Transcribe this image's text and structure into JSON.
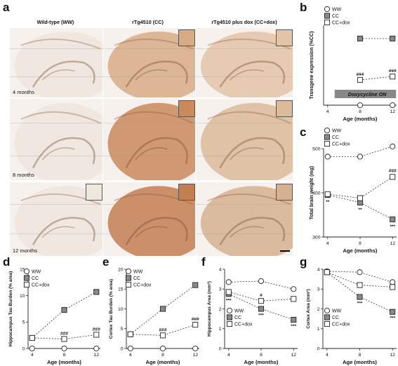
{
  "figure": {
    "panel_letters": {
      "a": "a",
      "b": "b",
      "c": "c",
      "d": "d",
      "e": "e",
      "f": "f",
      "g": "g"
    },
    "columns": [
      "Wild-type (WW)",
      "rTg4510 (CC)",
      "rTg4510 plus dox (CC+dox)"
    ],
    "row_ages": [
      "4 months",
      "8 months",
      "12 months"
    ],
    "micrograph_tones": {
      "ww": "#efe6de",
      "cc_4": "#d7ab86",
      "cc_8": "#c98a5c",
      "cc_12": "#c37e52",
      "dox_4": "#e3c4a8",
      "dox_8": "#dcbb9b",
      "dox_12": "#d6b190"
    },
    "doxycycline_label": "Doxycycline ON"
  },
  "chart_data": [
    {
      "id": "b",
      "type": "line",
      "ylabel": "Transgene expression (%CC)",
      "xlabel": "Age (months)",
      "x": [
        4,
        8,
        12
      ],
      "ylim": [
        0,
        120
      ],
      "yticks": [],
      "legend": [
        "WW",
        "CC",
        "CC+dox"
      ],
      "series": [
        {
          "name": "WW",
          "x": [
            8,
            12
          ],
          "values": [
            0,
            0
          ],
          "marker": "circle-open"
        },
        {
          "name": "CC",
          "x": [
            8,
            12
          ],
          "values": [
            100,
            100
          ],
          "marker": "square-gray"
        },
        {
          "name": "CC+dox",
          "x": [
            8,
            12
          ],
          "values": [
            38,
            43
          ],
          "marker": "square-open"
        }
      ],
      "annotations": [
        {
          "series": "CC+dox",
          "x": 8,
          "text": "###"
        },
        {
          "series": "CC+dox",
          "x": 12,
          "text": "###"
        }
      ]
    },
    {
      "id": "c",
      "type": "line",
      "ylabel": "Total brain weight (mg)",
      "xlabel": "Age (months)",
      "x": [
        4,
        8,
        12
      ],
      "ylim": [
        300,
        500
      ],
      "yticks": [
        300,
        400,
        500
      ],
      "legend": [
        "WW",
        "CC",
        "CC+dox"
      ],
      "series": [
        {
          "name": "WW",
          "x": [
            4,
            8,
            12
          ],
          "values": [
            482,
            482,
            505
          ],
          "marker": "circle-open"
        },
        {
          "name": "CC",
          "x": [
            4,
            8,
            12
          ],
          "values": [
            395,
            378,
            340
          ],
          "marker": "square-gray"
        },
        {
          "name": "CC+dox",
          "x": [
            4,
            8,
            12
          ],
          "values": [
            397,
            388,
            436
          ],
          "marker": "square-open"
        }
      ],
      "annotations": [
        {
          "x": 4,
          "text": "**",
          "pos": "below"
        },
        {
          "x": 8,
          "text": "**",
          "pos": "below"
        },
        {
          "x": 12,
          "text": "***",
          "pos": "below"
        },
        {
          "x": 12,
          "text": "###",
          "pos": "above"
        }
      ]
    },
    {
      "id": "d",
      "type": "line",
      "ylabel": "Hippocampus Tau Burden (% area)",
      "xlabel": "Age (months)",
      "x": [
        4,
        8,
        12
      ],
      "ylim": [
        0,
        15
      ],
      "yticks": [
        0,
        5,
        10,
        15
      ],
      "legend": [
        "WW",
        "CC",
        "CC+dox"
      ],
      "series": [
        {
          "name": "WW",
          "x": [
            4,
            8,
            12
          ],
          "values": [
            0,
            0,
            0
          ],
          "marker": "circle-open"
        },
        {
          "name": "CC",
          "x": [
            4,
            8,
            12
          ],
          "values": [
            2.0,
            7.3,
            10.7
          ],
          "marker": "square-gray"
        },
        {
          "name": "CC+dox",
          "x": [
            4,
            8,
            12
          ],
          "values": [
            2.0,
            1.8,
            2.6
          ],
          "marker": "square-open"
        }
      ],
      "annotations": [
        {
          "x": 8,
          "text": "###"
        },
        {
          "x": 12,
          "text": "###"
        }
      ]
    },
    {
      "id": "e",
      "type": "line",
      "ylabel": "Cortex Tau Burden (% area)",
      "xlabel": "Age (months)",
      "x": [
        4,
        8,
        12
      ],
      "ylim": [
        0,
        20
      ],
      "yticks": [
        0,
        5,
        10,
        15,
        20
      ],
      "legend": [
        "WW",
        "CC",
        "CC+dox"
      ],
      "series": [
        {
          "name": "WW",
          "x": [
            4,
            8,
            12
          ],
          "values": [
            0,
            0,
            0
          ],
          "marker": "circle-open"
        },
        {
          "name": "CC",
          "x": [
            4,
            8,
            12
          ],
          "values": [
            3.6,
            10.0,
            16.0
          ],
          "marker": "square-gray"
        },
        {
          "name": "CC+dox",
          "x": [
            4,
            8,
            12
          ],
          "values": [
            3.6,
            3.3,
            6.0
          ],
          "marker": "square-open"
        }
      ],
      "annotations": [
        {
          "x": 8,
          "text": "###"
        },
        {
          "x": 12,
          "text": "###"
        }
      ]
    },
    {
      "id": "f",
      "type": "line",
      "ylabel": "Hippocampus Area (mm²)",
      "xlabel": "Age (months)",
      "x": [
        4,
        8,
        12
      ],
      "ylim": [
        0,
        4
      ],
      "yticks": [
        0,
        1,
        2,
        3,
        4
      ],
      "legend": [
        "WW",
        "CC",
        "CC+dox"
      ],
      "series": [
        {
          "name": "WW",
          "x": [
            4,
            8,
            12
          ],
          "values": [
            3.35,
            3.4,
            3.0
          ],
          "marker": "circle-open"
        },
        {
          "name": "CC",
          "x": [
            4,
            8,
            12
          ],
          "values": [
            2.75,
            2.0,
            1.45
          ],
          "marker": "square-gray"
        },
        {
          "name": "CC+dox",
          "x": [
            4,
            8,
            12
          ],
          "values": [
            2.85,
            2.4,
            2.5
          ],
          "marker": "square-open"
        }
      ],
      "annotations": [
        {
          "x": 4,
          "text": "***"
        },
        {
          "x": 8,
          "text": "#"
        },
        {
          "x": 8,
          "text": "***"
        },
        {
          "x": 12,
          "text": "***"
        }
      ]
    },
    {
      "id": "g",
      "type": "line",
      "ylabel": "Cortex Area (mm²)",
      "xlabel": "Age (months)",
      "x": [
        4,
        8,
        12
      ],
      "ylim": [
        0,
        4
      ],
      "yticks": [
        0,
        1,
        2,
        3,
        4
      ],
      "legend": [
        "WW",
        "CC",
        "CC+dox"
      ],
      "series": [
        {
          "name": "WW",
          "x": [
            4,
            8,
            12
          ],
          "values": [
            3.9,
            3.85,
            3.35
          ],
          "marker": "circle-open"
        },
        {
          "name": "CC",
          "x": [
            4,
            8,
            12
          ],
          "values": [
            3.85,
            2.6,
            1.85
          ],
          "marker": "square-gray"
        },
        {
          "name": "CC+dox",
          "x": [
            4,
            8,
            12
          ],
          "values": [
            3.85,
            3.2,
            3.1
          ],
          "marker": "square-open"
        }
      ],
      "annotations": [
        {
          "x": 8,
          "text": "***"
        },
        {
          "x": 12,
          "text": "***"
        }
      ]
    }
  ]
}
